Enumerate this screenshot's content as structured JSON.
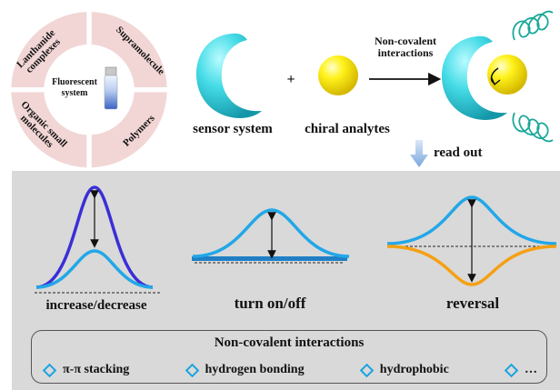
{
  "ring": {
    "center": "Fluorescent system",
    "segments": [
      "Lanthanide complexes",
      "Supramolecule",
      "Polymers",
      "Organic small molecules"
    ]
  },
  "top": {
    "plus": "+",
    "sensor_label": "sensor system",
    "analyte_label": "chiral analytes",
    "arrow_label": "Non-covalent interactions",
    "read_out": "read out"
  },
  "modes": [
    {
      "label": "increase/decrease"
    },
    {
      "label": "turn on/off"
    },
    {
      "label": "reversal"
    }
  ],
  "interactions": {
    "title": "Non-covalent interactions",
    "items": [
      "π-π stacking",
      "hydrogen bonding",
      "hydrophobic",
      "…"
    ]
  },
  "colors": {
    "ring_fill": "#f2d6d6",
    "sensor": "#3fd6e0",
    "analyte": "#ffef1a",
    "curve_blue": "#22a7e8",
    "curve_purple": "#3a2fd6",
    "curve_orange": "#f5a013",
    "helix": "#1aa89a",
    "panel_bg": "#d9d9d9"
  }
}
